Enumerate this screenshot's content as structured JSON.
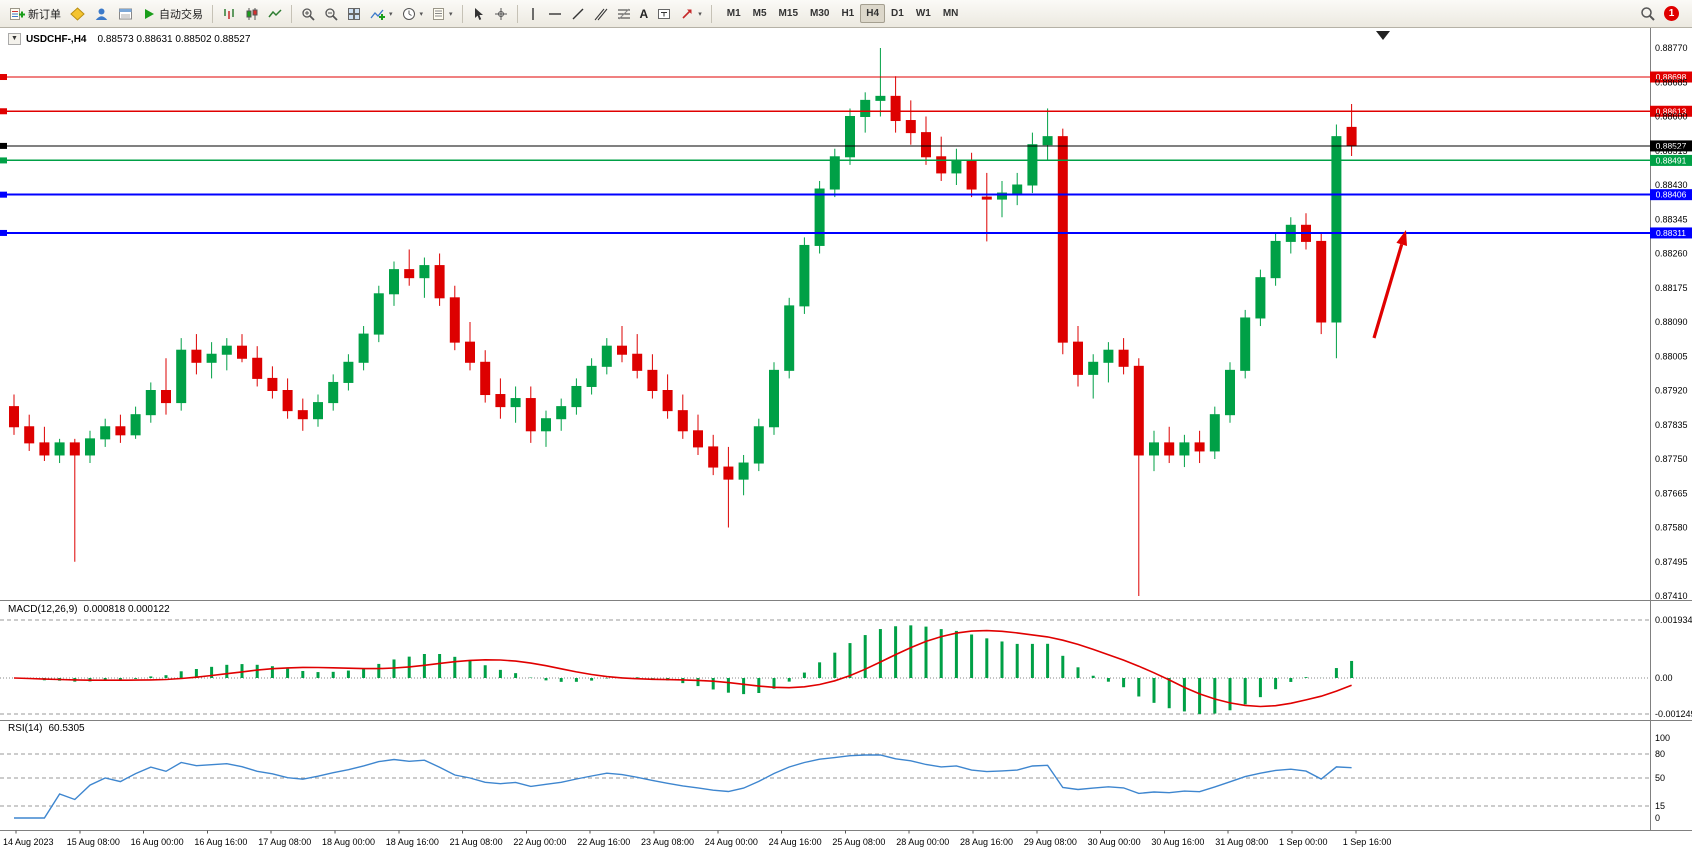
{
  "glyphs": {
    "collapse": "▼",
    "chevron": "▾"
  },
  "toolbar": {
    "buttons": {
      "new_order": "新订单",
      "autotrading": "自动交易"
    },
    "timeframes": [
      "M1",
      "M5",
      "M15",
      "M30",
      "H1",
      "H4",
      "D1",
      "W1",
      "MN"
    ],
    "active_timeframe": "H4",
    "notification_badge": "1"
  },
  "colors": {
    "bull": "#00A046",
    "bear": "#DD0000",
    "macd_hist": "#00A046",
    "macd_signal": "#E00000",
    "rsi_line": "#3E86CF",
    "hline_red": "#E00000",
    "hline_green": "#00A046",
    "hline_blue": "#0000FF",
    "current_price": "#000000",
    "arrow": "#E00000",
    "axis_text": "#000000",
    "separator": "#808080",
    "level_dash": "#999999"
  },
  "chart_data": [
    {
      "type": "candlestick",
      "title": "USDCHF-,H4",
      "ohlc_text": "0.88573 0.88631 0.88502 0.88527",
      "ylim": [
        0.8741,
        0.8877
      ],
      "y_ticks": [
        "0.88770",
        "0.88685",
        "0.88600",
        "0.88515",
        "0.88430",
        "0.88345",
        "0.88260",
        "0.88175",
        "0.88090",
        "0.88005",
        "0.87920",
        "0.87835",
        "0.87750",
        "0.87665",
        "0.87580",
        "0.87495",
        "0.87410"
      ],
      "x_labels": [
        "14 Aug 2023",
        "15 Aug 08:00",
        "16 Aug 00:00",
        "16 Aug 16:00",
        "17 Aug 08:00",
        "18 Aug 00:00",
        "18 Aug 16:00",
        "21 Aug 08:00",
        "22 Aug 00:00",
        "22 Aug 16:00",
        "23 Aug 08:00",
        "24 Aug 00:00",
        "24 Aug 16:00",
        "25 Aug 08:00",
        "28 Aug 00:00",
        "28 Aug 16:00",
        "29 Aug 08:00",
        "30 Aug 00:00",
        "30 Aug 16:00",
        "31 Aug 08:00",
        "1 Sep 00:00",
        "1 Sep 16:00"
      ],
      "hlines": [
        {
          "price": 0.88698,
          "label": "0.88698",
          "color": "#E00000",
          "width": 1.2
        },
        {
          "price": 0.88613,
          "label": "0.88613",
          "color": "#E00000",
          "width": 1.2
        },
        {
          "price": 0.88527,
          "label": "0.88527",
          "color": "#000000",
          "width": 1
        },
        {
          "price": 0.88491,
          "label": "0.88491",
          "color": "#00A046",
          "width": 1.4
        },
        {
          "price": 0.88406,
          "label": "0.88406",
          "color": "#0000FF",
          "width": 2
        },
        {
          "price": 0.88311,
          "label": "0.88311",
          "color": "#0000FF",
          "width": 2
        }
      ],
      "annotations": [
        {
          "type": "arrow-up-right",
          "color": "#E00000"
        },
        {
          "type": "shift-marker",
          "color": "#222222"
        }
      ],
      "candles": [
        [
          0.8788,
          0.8791,
          0.8781,
          0.8783
        ],
        [
          0.8783,
          0.8786,
          0.8777,
          0.8779
        ],
        [
          0.8779,
          0.8783,
          0.87745,
          0.8776
        ],
        [
          0.8776,
          0.878,
          0.8774,
          0.8779
        ],
        [
          0.8779,
          0.878,
          0.87495,
          0.8776
        ],
        [
          0.8776,
          0.8782,
          0.8774,
          0.878
        ],
        [
          0.878,
          0.8785,
          0.8778,
          0.8783
        ],
        [
          0.8783,
          0.8786,
          0.8779,
          0.8781
        ],
        [
          0.8781,
          0.8788,
          0.878,
          0.8786
        ],
        [
          0.8786,
          0.8794,
          0.8784,
          0.8792
        ],
        [
          0.8792,
          0.88,
          0.8786,
          0.8789
        ],
        [
          0.8789,
          0.8805,
          0.8787,
          0.8802
        ],
        [
          0.8802,
          0.8806,
          0.8796,
          0.8799
        ],
        [
          0.8799,
          0.8804,
          0.8795,
          0.8801
        ],
        [
          0.8801,
          0.8805,
          0.8797,
          0.8803
        ],
        [
          0.8803,
          0.8806,
          0.8799,
          0.88
        ],
        [
          0.88,
          0.8803,
          0.8793,
          0.8795
        ],
        [
          0.8795,
          0.8798,
          0.879,
          0.8792
        ],
        [
          0.8792,
          0.8795,
          0.8785,
          0.8787
        ],
        [
          0.8787,
          0.879,
          0.8782,
          0.8785
        ],
        [
          0.8785,
          0.8791,
          0.8783,
          0.8789
        ],
        [
          0.8789,
          0.8796,
          0.8787,
          0.8794
        ],
        [
          0.8794,
          0.8801,
          0.8792,
          0.8799
        ],
        [
          0.8799,
          0.8808,
          0.8797,
          0.8806
        ],
        [
          0.8806,
          0.8818,
          0.8804,
          0.8816
        ],
        [
          0.8816,
          0.8824,
          0.8813,
          0.8822
        ],
        [
          0.8822,
          0.8827,
          0.8818,
          0.882
        ],
        [
          0.882,
          0.8825,
          0.8815,
          0.8823
        ],
        [
          0.8823,
          0.8826,
          0.8813,
          0.8815
        ],
        [
          0.8815,
          0.8818,
          0.8802,
          0.8804
        ],
        [
          0.8804,
          0.8809,
          0.8797,
          0.8799
        ],
        [
          0.8799,
          0.8802,
          0.8789,
          0.8791
        ],
        [
          0.8791,
          0.8795,
          0.8785,
          0.8788
        ],
        [
          0.8788,
          0.8793,
          0.8784,
          0.879
        ],
        [
          0.879,
          0.8793,
          0.8779,
          0.8782
        ],
        [
          0.8782,
          0.8787,
          0.8778,
          0.8785
        ],
        [
          0.8785,
          0.879,
          0.8782,
          0.8788
        ],
        [
          0.8788,
          0.8795,
          0.8786,
          0.8793
        ],
        [
          0.8793,
          0.88,
          0.8791,
          0.8798
        ],
        [
          0.8798,
          0.8805,
          0.8796,
          0.8803
        ],
        [
          0.8803,
          0.8808,
          0.8799,
          0.8801
        ],
        [
          0.8801,
          0.8806,
          0.8795,
          0.8797
        ],
        [
          0.8797,
          0.8801,
          0.879,
          0.8792
        ],
        [
          0.8792,
          0.8796,
          0.8785,
          0.8787
        ],
        [
          0.8787,
          0.8791,
          0.878,
          0.8782
        ],
        [
          0.8782,
          0.8786,
          0.8776,
          0.8778
        ],
        [
          0.8778,
          0.8781,
          0.8771,
          0.8773
        ],
        [
          0.8773,
          0.8778,
          0.8758,
          0.877
        ],
        [
          0.877,
          0.8776,
          0.8766,
          0.8774
        ],
        [
          0.8774,
          0.8785,
          0.8772,
          0.8783
        ],
        [
          0.8783,
          0.8799,
          0.8781,
          0.8797
        ],
        [
          0.8797,
          0.8815,
          0.8795,
          0.8813
        ],
        [
          0.8813,
          0.883,
          0.8811,
          0.8828
        ],
        [
          0.8828,
          0.8844,
          0.8826,
          0.8842
        ],
        [
          0.8842,
          0.8852,
          0.884,
          0.885
        ],
        [
          0.885,
          0.8862,
          0.8848,
          0.886
        ],
        [
          0.886,
          0.8866,
          0.8856,
          0.8864
        ],
        [
          0.8864,
          0.8877,
          0.886,
          0.8865
        ],
        [
          0.8865,
          0.887,
          0.8856,
          0.8859
        ],
        [
          0.8859,
          0.8864,
          0.8853,
          0.8856
        ],
        [
          0.8856,
          0.886,
          0.8848,
          0.885
        ],
        [
          0.885,
          0.8855,
          0.8844,
          0.8846
        ],
        [
          0.8846,
          0.8852,
          0.8843,
          0.8849
        ],
        [
          0.8849,
          0.8851,
          0.884,
          0.8842
        ],
        [
          0.884,
          0.8846,
          0.8829,
          0.88395
        ],
        [
          0.88395,
          0.8844,
          0.8835,
          0.8841
        ],
        [
          0.8841,
          0.8846,
          0.8838,
          0.8843
        ],
        [
          0.8843,
          0.8856,
          0.8841,
          0.8853
        ],
        [
          0.8853,
          0.8862,
          0.8849,
          0.8855
        ],
        [
          0.8855,
          0.8857,
          0.8801,
          0.8804
        ],
        [
          0.8804,
          0.8808,
          0.8793,
          0.8796
        ],
        [
          0.8796,
          0.8801,
          0.879,
          0.8799
        ],
        [
          0.8799,
          0.8804,
          0.8794,
          0.8802
        ],
        [
          0.8802,
          0.8805,
          0.8796,
          0.8798
        ],
        [
          0.8798,
          0.88,
          0.8741,
          0.8776
        ],
        [
          0.8776,
          0.8782,
          0.8772,
          0.8779
        ],
        [
          0.8779,
          0.8783,
          0.8774,
          0.8776
        ],
        [
          0.8776,
          0.8781,
          0.8773,
          0.8779
        ],
        [
          0.8779,
          0.8782,
          0.8774,
          0.8777
        ],
        [
          0.8777,
          0.8788,
          0.8775,
          0.8786
        ],
        [
          0.8786,
          0.8799,
          0.8784,
          0.8797
        ],
        [
          0.8797,
          0.8812,
          0.8795,
          0.881
        ],
        [
          0.881,
          0.8822,
          0.8808,
          0.882
        ],
        [
          0.882,
          0.8831,
          0.8818,
          0.8829
        ],
        [
          0.8829,
          0.8835,
          0.8826,
          0.8833
        ],
        [
          0.8833,
          0.8836,
          0.8827,
          0.8829
        ],
        [
          0.8829,
          0.8831,
          0.8806,
          0.8809
        ],
        [
          0.8809,
          0.8858,
          0.88,
          0.8855
        ],
        [
          0.88573,
          0.88631,
          0.88502,
          0.88527
        ]
      ]
    },
    {
      "type": "macd",
      "label": "MACD(12,26,9)",
      "values_text": "0.000818 0.000122",
      "params": [
        12,
        26,
        9
      ],
      "y_ticks": [
        {
          "label": "0.001934",
          "value": 0.001934
        },
        {
          "label": "0.00",
          "value": 0
        },
        {
          "label": "-0.001249",
          "value": -0.001249
        }
      ]
    },
    {
      "type": "rsi",
      "label": "RSI(14)",
      "value_text": "60.5305",
      "period": 14,
      "y_ticks": [
        {
          "label": "100",
          "value": 100
        },
        {
          "label": "80",
          "value": 80
        },
        {
          "label": "50",
          "value": 50
        },
        {
          "label": "15",
          "value": 15
        },
        {
          "label": "0",
          "value": 0
        }
      ],
      "levels": [
        80,
        50,
        15
      ]
    }
  ]
}
